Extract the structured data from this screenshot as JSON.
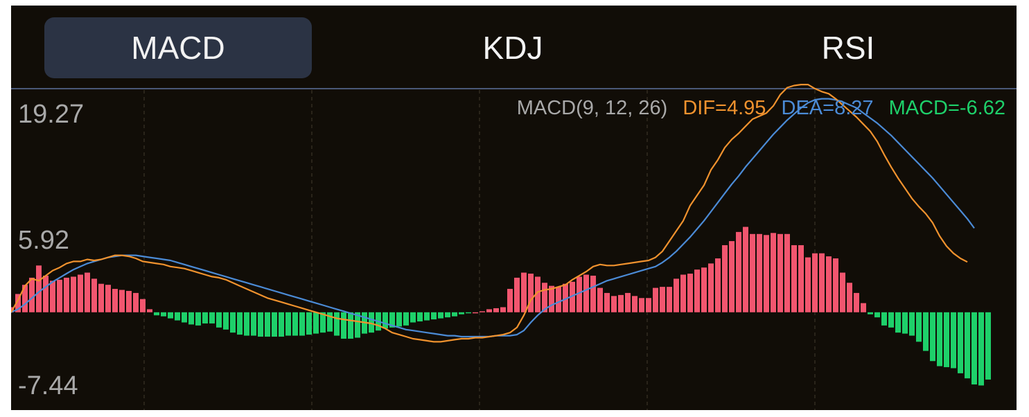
{
  "tabs": [
    {
      "label": "MACD",
      "active": true
    },
    {
      "label": "KDJ",
      "active": false
    },
    {
      "label": "RSI",
      "active": false
    }
  ],
  "legend": {
    "params": "MACD(9, 12, 26)",
    "dif": "DIF=4.95",
    "dea": "DEA=8.27",
    "macd": "MACD=-6.62"
  },
  "colors": {
    "background": "#110d07",
    "tab_active": "#2b3344",
    "dif": "#f0922e",
    "dea": "#4b8bd6",
    "hist_pos": "#f2566f",
    "hist_neg": "#1ed06a",
    "label": "#a9a9a9",
    "grid": "#3a3428"
  },
  "chart_data": {
    "type": "line",
    "title": "",
    "y_tick_labels": [
      "19.27",
      "5.92",
      "-7.44"
    ],
    "ylim": [
      -7.44,
      19.27
    ],
    "grid": "vertical dashed",
    "series": [
      {
        "name": "DIF",
        "values": [
          0.0,
          1.2,
          2.6,
          3.3,
          3.1,
          3.6,
          4.1,
          4.4,
          4.8,
          5.0,
          5.0,
          5.2,
          5.1,
          5.2,
          5.4,
          5.6,
          5.6,
          5.5,
          5.3,
          5.0,
          4.9,
          4.8,
          4.7,
          4.5,
          4.4,
          4.3,
          4.1,
          3.9,
          3.7,
          3.5,
          3.4,
          3.2,
          2.9,
          2.6,
          2.3,
          2.0,
          1.7,
          1.4,
          1.2,
          1.0,
          0.8,
          0.6,
          0.4,
          0.2,
          0.0,
          -0.2,
          -0.4,
          -0.6,
          -0.7,
          -0.8,
          -0.9,
          -1.0,
          -1.1,
          -1.3,
          -1.6,
          -2.0,
          -2.2,
          -2.4,
          -2.6,
          -2.7,
          -2.8,
          -2.9,
          -2.9,
          -2.8,
          -2.7,
          -2.6,
          -2.6,
          -2.5,
          -2.5,
          -2.4,
          -2.3,
          -2.2,
          -2.0,
          -1.5,
          -0.3,
          1.2,
          2.0,
          2.2,
          2.3,
          2.5,
          2.7,
          3.2,
          3.6,
          4.0,
          4.5,
          4.7,
          4.6,
          4.6,
          4.7,
          4.8,
          4.9,
          5.0,
          5.1,
          5.4,
          6.0,
          7.0,
          8.0,
          9.0,
          10.5,
          11.5,
          12.5,
          14.0,
          15.0,
          16.2,
          17.0,
          17.6,
          18.3,
          19.0,
          19.3,
          19.6,
          20.3,
          21.4,
          22.1,
          22.3,
          22.4,
          22.4,
          22.0,
          21.7,
          21.5,
          21.0,
          20.4,
          19.8,
          19.2,
          18.5,
          17.8,
          16.8,
          15.5,
          14.3,
          13.2,
          12.2,
          11.2,
          10.4,
          9.7,
          8.8,
          7.5,
          6.5,
          5.8,
          5.3,
          4.95
        ]
      },
      {
        "name": "DEA",
        "values": [
          0.0,
          0.3,
          0.8,
          1.4,
          2.0,
          2.5,
          3.0,
          3.4,
          3.8,
          4.2,
          4.5,
          4.8,
          5.0,
          5.2,
          5.4,
          5.5,
          5.6,
          5.6,
          5.6,
          5.5,
          5.4,
          5.3,
          5.2,
          5.1,
          4.9,
          4.7,
          4.5,
          4.3,
          4.1,
          3.9,
          3.7,
          3.5,
          3.3,
          3.1,
          2.9,
          2.7,
          2.5,
          2.3,
          2.1,
          1.9,
          1.7,
          1.5,
          1.3,
          1.1,
          0.9,
          0.7,
          0.5,
          0.3,
          0.1,
          -0.1,
          -0.3,
          -0.5,
          -0.7,
          -0.9,
          -1.1,
          -1.3,
          -1.5,
          -1.7,
          -1.8,
          -1.9,
          -2.0,
          -2.1,
          -2.2,
          -2.3,
          -2.3,
          -2.4,
          -2.4,
          -2.4,
          -2.4,
          -2.4,
          -2.3,
          -2.3,
          -2.3,
          -2.2,
          -1.8,
          -1.0,
          -0.3,
          0.3,
          0.7,
          1.0,
          1.3,
          1.6,
          1.9,
          2.2,
          2.5,
          2.8,
          3.1,
          3.3,
          3.5,
          3.7,
          3.9,
          4.1,
          4.3,
          4.5,
          4.9,
          5.4,
          6.0,
          6.7,
          7.4,
          8.2,
          9.0,
          9.9,
          10.8,
          11.7,
          12.6,
          13.4,
          14.3,
          15.1,
          15.9,
          16.7,
          17.5,
          18.2,
          18.9,
          19.5,
          20.1,
          20.6,
          20.9,
          21.0,
          21.0,
          20.9,
          20.7,
          20.4,
          20.1,
          19.6,
          19.1,
          18.6,
          18.0,
          17.4,
          16.7,
          16.0,
          15.3,
          14.6,
          13.9,
          13.2,
          12.4,
          11.6,
          10.8,
          10.0,
          9.2,
          8.27
        ]
      },
      {
        "name": "MACD",
        "values": [
          0.5,
          1.8,
          2.7,
          3.4,
          4.6,
          3.6,
          3.1,
          3.2,
          3.4,
          3.5,
          3.7,
          3.9,
          3.3,
          2.8,
          2.7,
          2.3,
          2.2,
          2.1,
          1.9,
          1.3,
          0.3,
          -0.3,
          -0.4,
          -0.6,
          -0.8,
          -1.0,
          -1.2,
          -1.3,
          -1.1,
          -1.1,
          -1.5,
          -1.7,
          -2.0,
          -2.2,
          -2.3,
          -2.3,
          -2.4,
          -2.4,
          -2.4,
          -2.4,
          -2.3,
          -2.3,
          -2.3,
          -2.2,
          -2.1,
          -2.0,
          -1.9,
          -2.3,
          -2.6,
          -2.6,
          -2.5,
          -2.1,
          -2.0,
          -1.8,
          -1.6,
          -1.5,
          -1.4,
          -1.3,
          -1.0,
          -0.9,
          -0.8,
          -0.7,
          -0.6,
          -0.5,
          -0.4,
          -0.2,
          -0.1,
          0.0,
          0.1,
          0.3,
          0.4,
          0.5,
          2.3,
          3.4,
          3.9,
          3.8,
          3.5,
          2.9,
          2.6,
          2.5,
          2.8,
          3.0,
          3.5,
          3.7,
          3.6,
          2.4,
          1.9,
          1.6,
          1.7,
          1.9,
          1.6,
          1.4,
          1.4,
          2.4,
          2.5,
          2.5,
          3.3,
          3.7,
          3.8,
          4.2,
          4.4,
          4.8,
          5.3,
          6.6,
          7.0,
          7.9,
          8.4,
          7.7,
          7.7,
          7.6,
          7.8,
          7.7,
          7.7,
          6.6,
          6.6,
          5.4,
          5.8,
          5.8,
          5.5,
          5.3,
          3.9,
          2.9,
          1.9,
          0.9,
          -0.2,
          -0.5,
          -1.3,
          -1.5,
          -2.0,
          -2.1,
          -2.3,
          -2.9,
          -3.8,
          -4.8,
          -5.3,
          -5.4,
          -5.5,
          -6.0,
          -6.5,
          -7.1,
          -7.2,
          -6.62
        ]
      }
    ]
  }
}
